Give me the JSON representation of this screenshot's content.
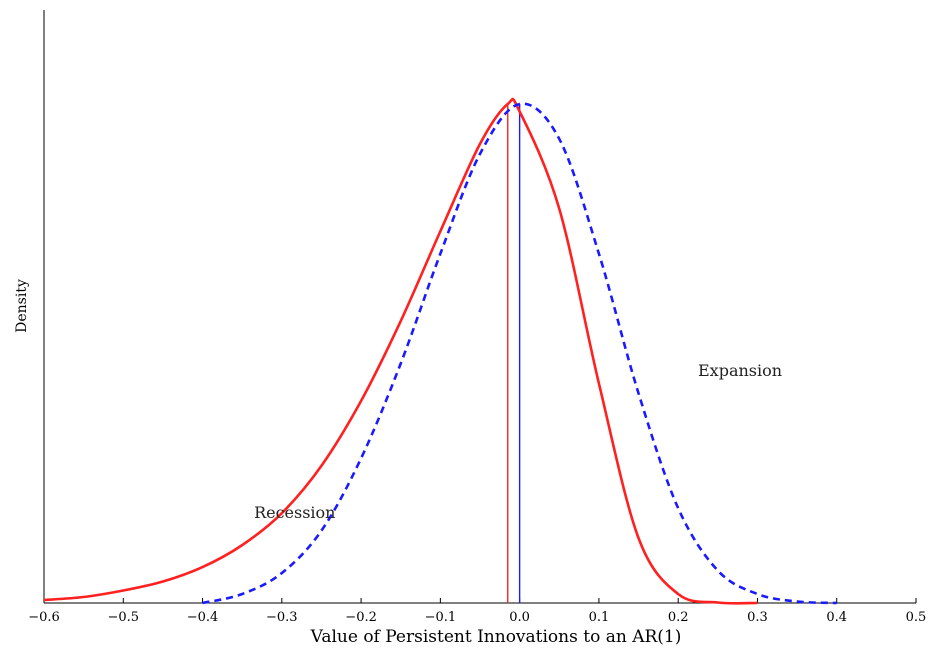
{
  "chart_data": {
    "type": "line",
    "xlabel": "Value of Persistent Innovations to an AR(1)",
    "ylabel": "Density",
    "xlim": [
      -0.6,
      0.5
    ],
    "ylim": [
      0,
      1.2
    ],
    "x_ticks": [
      -0.6,
      -0.5,
      -0.4,
      -0.3,
      -0.2,
      -0.1,
      0.0,
      0.1,
      0.2,
      0.3,
      0.4,
      0.5
    ],
    "x_tick_labels": [
      "−0.6",
      "−0.5",
      "−0.4",
      "−0.3",
      "−0.2",
      "−0.1",
      "0.0",
      "0.1",
      "0.2",
      "0.3",
      "0.4",
      "0.5"
    ],
    "grid": false,
    "legend": "none",
    "series": [
      {
        "name": "Recession",
        "color": "#ff2020",
        "style": "solid",
        "x": [
          -0.6,
          -0.55,
          -0.5,
          -0.45,
          -0.4,
          -0.35,
          -0.3,
          -0.25,
          -0.2,
          -0.15,
          -0.1,
          -0.05,
          -0.015,
          0.0,
          0.05,
          0.1,
          0.15,
          0.2,
          0.25,
          0.3
        ],
        "y": [
          0.006,
          0.012,
          0.025,
          0.043,
          0.072,
          0.116,
          0.18,
          0.275,
          0.405,
          0.565,
          0.745,
          0.92,
          1.0,
          0.985,
          0.79,
          0.44,
          0.13,
          0.018,
          0.001,
          0.0
        ]
      },
      {
        "name": "Expansion",
        "color": "#1a1aff",
        "style": "dashed",
        "x": [
          -0.4,
          -0.35,
          -0.3,
          -0.25,
          -0.2,
          -0.15,
          -0.1,
          -0.05,
          0.0,
          0.05,
          0.1,
          0.15,
          0.2,
          0.25,
          0.3,
          0.35,
          0.4
        ],
        "y": [
          0.0,
          0.018,
          0.06,
          0.145,
          0.29,
          0.48,
          0.7,
          0.9,
          1.0,
          0.93,
          0.7,
          0.42,
          0.19,
          0.065,
          0.018,
          0.003,
          0.0
        ]
      }
    ],
    "vertical_markers": [
      {
        "x": -0.015,
        "color": "#ff2020",
        "y_top": 1.0
      },
      {
        "x": 0.0,
        "color": "#1a1aff",
        "y_top": 1.0
      }
    ],
    "annotations": [
      {
        "text": "Recession",
        "x": -0.335,
        "y": 0.17
      },
      {
        "text": "Expansion",
        "x": 0.225,
        "y": 0.455
      }
    ]
  }
}
